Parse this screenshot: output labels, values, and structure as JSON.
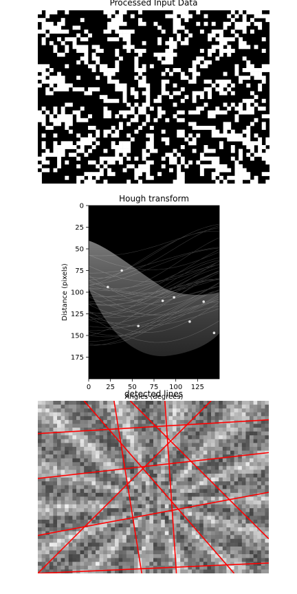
{
  "panels": {
    "processed_title": "Processed Input Data",
    "hough_title": "Hough transform",
    "lines_title": "detected lines"
  },
  "colors": {
    "line": "#ff0000",
    "background": "#ffffff",
    "frame": "#000000"
  },
  "chart_data": [
    {
      "type": "heatmap",
      "title": "Processed Input Data",
      "colormap": "binary black/white",
      "axes_visible": false
    },
    {
      "type": "heatmap",
      "title": "Hough transform",
      "xlabel": "Angles (degrees)",
      "ylabel": "Distance (pixels)",
      "xlim": [
        0,
        150
      ],
      "ylim": [
        200,
        0
      ],
      "xticks": [
        0,
        25,
        50,
        75,
        100,
        125
      ],
      "yticks": [
        0,
        25,
        50,
        75,
        100,
        125,
        150,
        175
      ],
      "colormap": "gray"
    },
    {
      "type": "heatmap",
      "title": "detected lines",
      "colormap": "gray",
      "overlay": "red straight lines",
      "line_count": 9,
      "axes_visible": false
    }
  ]
}
